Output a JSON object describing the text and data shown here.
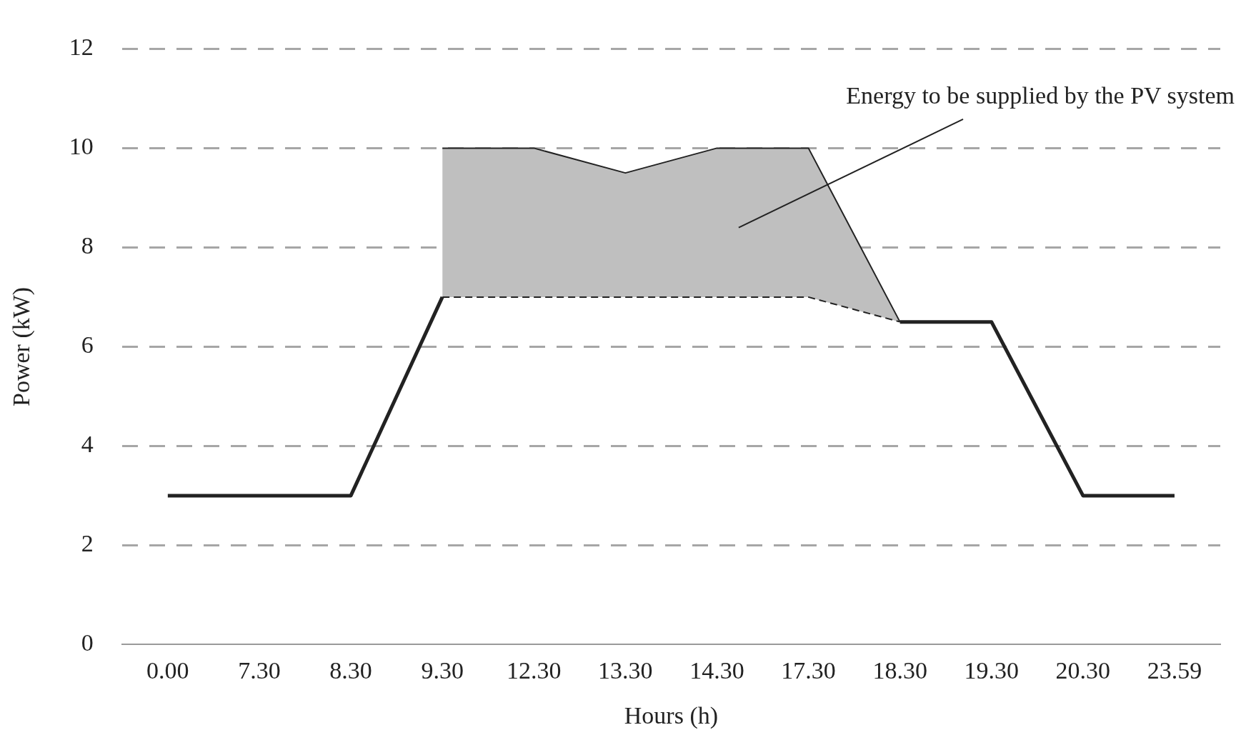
{
  "chart_data": {
    "type": "line",
    "xlabel": "Hours (h)",
    "ylabel": "Power (kW)",
    "categories": [
      "0.00",
      "7.30",
      "8.30",
      "9.30",
      "12.30",
      "13.30",
      "14.30",
      "17.30",
      "18.30",
      "19.30",
      "20.30",
      "23.59"
    ],
    "series": [
      {
        "color": "#222222",
        "line_style": "solid",
        "values": [
          3,
          3,
          3,
          7,
          null,
          null,
          null,
          null,
          6.5,
          6.5,
          3,
          3
        ]
      },
      {
        "color": "#222222",
        "line_style": "dashed",
        "values": [
          null,
          null,
          null,
          7,
          7,
          7,
          7,
          7,
          6.5,
          null,
          null,
          null
        ]
      },
      {
        "type": "area",
        "color": "#bfbfbf",
        "line_style": "solid",
        "values": [
          null,
          null,
          null,
          10,
          10,
          9.5,
          10,
          10,
          6.5,
          null,
          null,
          null
        ]
      }
    ],
    "ylim": [
      0,
      12
    ],
    "yticks": [
      0,
      2,
      4,
      6,
      8,
      10,
      12
    ],
    "grid": "y",
    "legend": false,
    "marker": "none",
    "annotations": [
      "Energy to be supplied by the PV system"
    ]
  }
}
